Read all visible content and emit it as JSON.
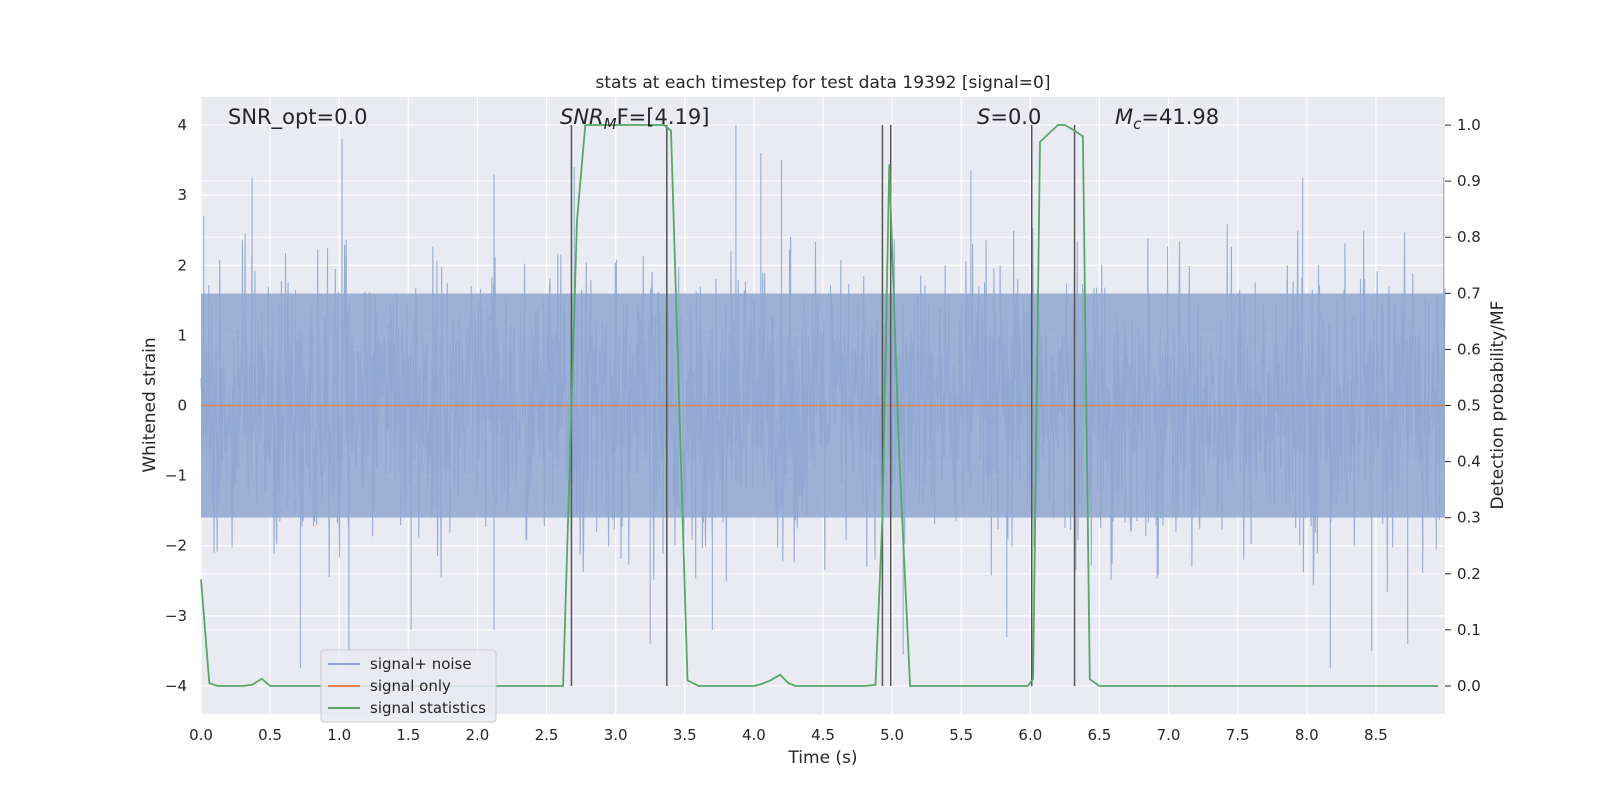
{
  "chart_data": {
    "type": "line",
    "title": "stats at each timestep for test data 19392 [signal=0]",
    "xlabel": "Time (s)",
    "ylabel": "Whitened strain",
    "y2label": "Detection probability/MF",
    "xlim": [
      0,
      9.0
    ],
    "ylim": [
      -4.4,
      4.4
    ],
    "y2lim": [
      -0.05,
      1.05
    ],
    "xticks": [
      0.0,
      0.5,
      1.0,
      1.5,
      2.0,
      2.5,
      3.0,
      3.5,
      4.0,
      4.5,
      5.0,
      5.5,
      6.0,
      6.5,
      7.0,
      7.5,
      8.0,
      8.5
    ],
    "xtick_labels": [
      "0.0",
      "0.5",
      "1.0",
      "1.5",
      "2.0",
      "2.5",
      "3.0",
      "3.5",
      "4.0",
      "4.5",
      "5.0",
      "5.5",
      "6.0",
      "6.5",
      "7.0",
      "7.5",
      "8.0",
      "8.5"
    ],
    "yticks": [
      -4,
      -3,
      -2,
      -1,
      0,
      1,
      2,
      3,
      4
    ],
    "ytick_labels": [
      "−4",
      "−3",
      "−2",
      "−1",
      "0",
      "1",
      "2",
      "3",
      "4"
    ],
    "y2ticks": [
      0.0,
      0.1,
      0.2,
      0.3,
      0.4,
      0.5,
      0.6,
      0.7,
      0.8,
      0.9,
      1.0
    ],
    "y2tick_labels": [
      "0.0",
      "0.1",
      "0.2",
      "0.3",
      "0.4",
      "0.5",
      "0.6",
      "0.7",
      "0.8",
      "0.9",
      "1.0"
    ],
    "grid": true,
    "legend_position": "lower-left",
    "annotations": {
      "snr_opt": "SNR_opt=0.0",
      "snr_mf_main": "SNR",
      "snr_mf_sub": "M",
      "snr_mf_rest": "F=[4.19]",
      "s_var": "S",
      "s_rest": "=0.0",
      "mc_var": "M",
      "mc_sub": "c",
      "mc_rest": "=41.98"
    },
    "noise_envelope": {
      "time_range": [
        0.0,
        9.0
      ],
      "typical_abs_max": 2.3,
      "peak_values": [
        {
          "x": 0.02,
          "y": 2.7
        },
        {
          "x": 0.37,
          "y": 3.25
        },
        {
          "x": 1.02,
          "y": 3.8
        },
        {
          "x": 2.12,
          "y": 3.3
        },
        {
          "x": 2.7,
          "y": 3.4
        },
        {
          "x": 3.87,
          "y": 4.0
        },
        {
          "x": 4.05,
          "y": 3.6
        },
        {
          "x": 4.2,
          "y": 3.5
        },
        {
          "x": 5.57,
          "y": 3.35
        },
        {
          "x": 7.97,
          "y": 3.25
        },
        {
          "x": 8.99,
          "y": 3.25
        },
        {
          "x": 0.72,
          "y": -3.75
        },
        {
          "x": 1.07,
          "y": -3.6
        },
        {
          "x": 1.52,
          "y": -3.2
        },
        {
          "x": 2.12,
          "y": -3.2
        },
        {
          "x": 3.25,
          "y": -3.4
        },
        {
          "x": 3.7,
          "y": -3.2
        },
        {
          "x": 5.08,
          "y": -3.55
        },
        {
          "x": 5.83,
          "y": -3.3
        },
        {
          "x": 8.17,
          "y": -3.75
        },
        {
          "x": 8.47,
          "y": -3.5
        },
        {
          "x": 8.73,
          "y": -3.4
        }
      ]
    },
    "series": [
      {
        "name": "signal+ noise",
        "color": "#8fa7d0",
        "axis": "left",
        "kind": "noise",
        "values": []
      },
      {
        "name": "signal only",
        "color": "#dd8452",
        "axis": "left",
        "x": [
          0.0,
          9.0
        ],
        "y": [
          0.0,
          0.0
        ]
      },
      {
        "name": "signal statistics",
        "color": "#55a868",
        "axis": "right",
        "x": [
          0.0,
          0.06,
          0.12,
          0.2,
          0.3,
          0.37,
          0.44,
          0.5,
          0.6,
          1.0,
          1.5,
          2.0,
          2.5,
          2.62,
          2.72,
          2.78,
          3.0,
          3.3,
          3.35,
          3.4,
          3.52,
          3.6,
          3.8,
          4.0,
          4.05,
          4.12,
          4.19,
          4.25,
          4.3,
          4.5,
          4.8,
          4.88,
          4.93,
          4.98,
          5.05,
          5.13,
          5.3,
          5.6,
          5.9,
          5.98,
          6.02,
          6.07,
          6.2,
          6.25,
          6.32,
          6.38,
          6.43,
          6.5,
          7.0,
          7.5,
          8.0,
          8.5,
          8.95
        ],
        "y": [
          0.19,
          0.005,
          0.0,
          0.0,
          0.0,
          0.002,
          0.013,
          0.0,
          0.0,
          0.0,
          0.0,
          0.0,
          0.0,
          0.0,
          0.83,
          1.0,
          1.0,
          1.0,
          1.0,
          0.99,
          0.01,
          0.0,
          0.0,
          0.0,
          0.003,
          0.01,
          0.02,
          0.005,
          0.0,
          0.0,
          0.0,
          0.002,
          0.3,
          0.93,
          0.42,
          0.0,
          0.0,
          0.0,
          0.0,
          0.0,
          0.012,
          0.97,
          1.0,
          1.0,
          0.99,
          0.98,
          0.012,
          0.0,
          0.0,
          0.0,
          0.0,
          0.0,
          0.0
        ]
      }
    ],
    "vertical_markers": [
      2.68,
      3.37,
      4.93,
      4.99,
      6.01,
      6.32
    ]
  }
}
